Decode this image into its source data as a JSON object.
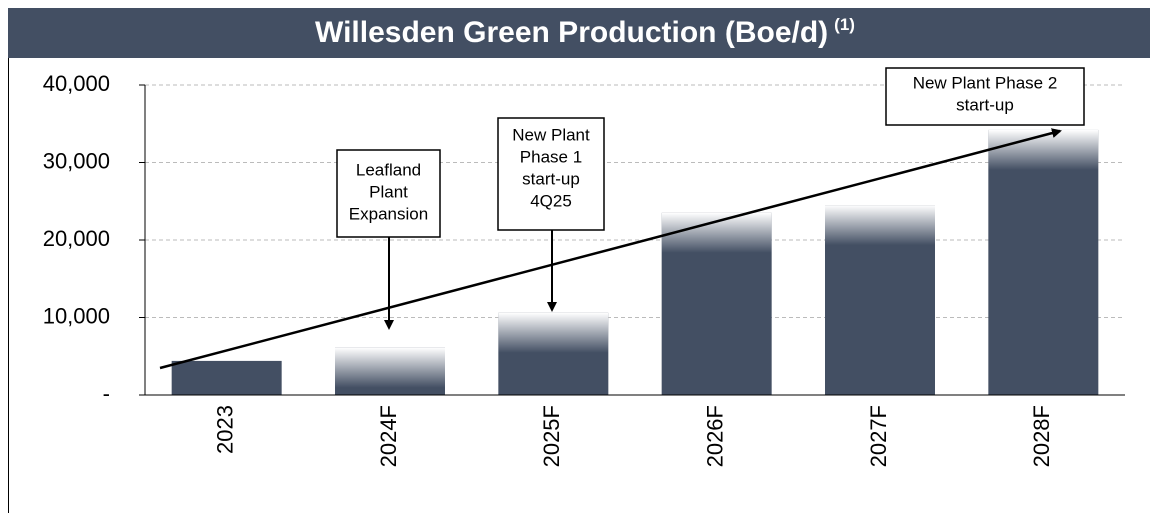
{
  "chart_data": {
    "type": "bar",
    "title": "Willesden Green Production (Boe/d)",
    "title_note": "(1)",
    "categories": [
      "2023",
      "2024F",
      "2025F",
      "2026F",
      "2027F",
      "2028F"
    ],
    "values": [
      4400,
      6100,
      10600,
      23500,
      24500,
      34200
    ],
    "color": "#434f63",
    "fade_top": [
      false,
      true,
      true,
      true,
      true,
      true
    ],
    "ylim": [
      0,
      40000
    ],
    "yticks": [
      {
        "value": 0,
        "label": "-"
      },
      {
        "value": 10000,
        "label": "10,000"
      },
      {
        "value": 20000,
        "label": "20,000"
      },
      {
        "value": 30000,
        "label": "30,000"
      },
      {
        "value": 40000,
        "label": "40,000"
      }
    ],
    "grid": true,
    "annotations": [
      {
        "lines": [
          "Leafland",
          "Plant",
          "Expansion"
        ]
      },
      {
        "lines": [
          "New Plant",
          "Phase 1",
          "start-up",
          "4Q25"
        ]
      },
      {
        "lines": [
          "New Plant Phase 2",
          "start-up"
        ]
      }
    ]
  }
}
